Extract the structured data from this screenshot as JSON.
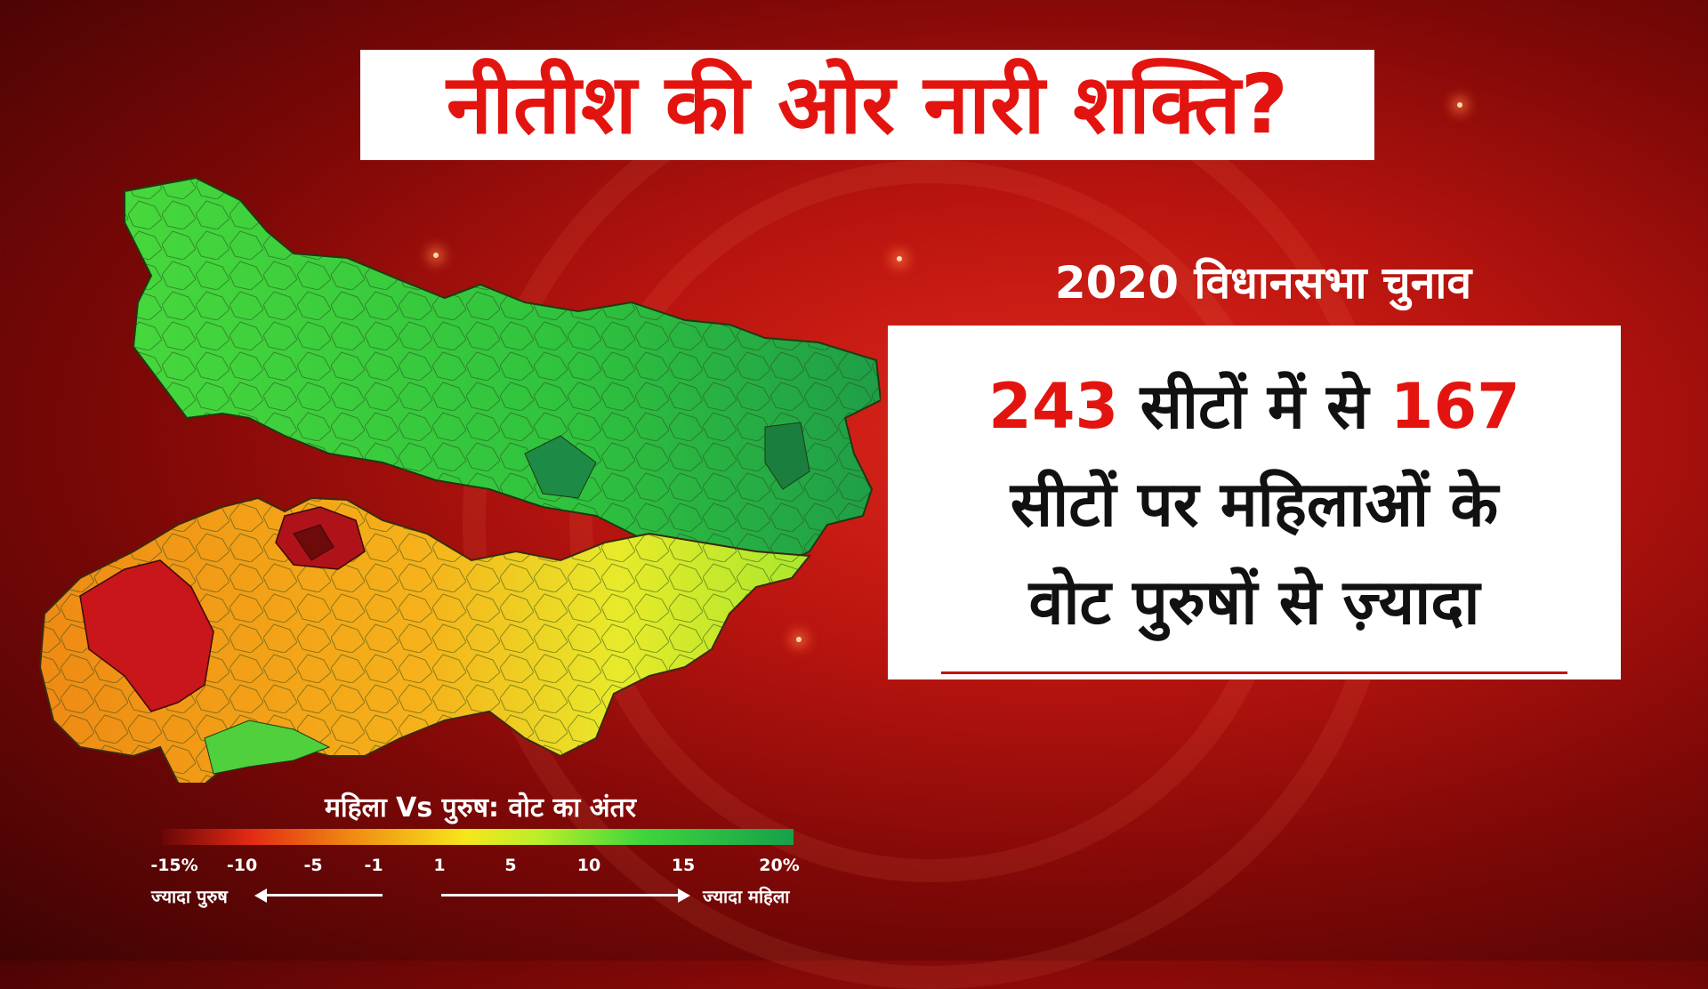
{
  "title": "नीतीश की ओर नारी शक्ति?",
  "subtitle": "2020 विधानसभा चुनाव",
  "info": {
    "line1_num1": "243",
    "line1_mid": " सीटों में से ",
    "line1_num2": "167",
    "line2": "सीटों पर महिलाओं के",
    "line3": "वोट पुरुषों से ज़्यादा"
  },
  "legend": {
    "title": "महिला Vs पुरुष: वोट का अंतर",
    "ticks": [
      "-15%",
      "-10",
      "-5",
      "-1",
      "1",
      "5",
      "10",
      "15",
      "20%"
    ],
    "left_label": "ज्यादा पुरुष",
    "right_label": "ज्यादा महिला"
  },
  "map": {
    "region": "Bihar",
    "north_color": "#2fd13c",
    "south_color": "#f28a14",
    "southeast_color": "#e3ea2a",
    "southwest_color": "#c8161a"
  },
  "colors": {
    "accent_red": "#e3140f",
    "title_bg": "#ffffff"
  }
}
